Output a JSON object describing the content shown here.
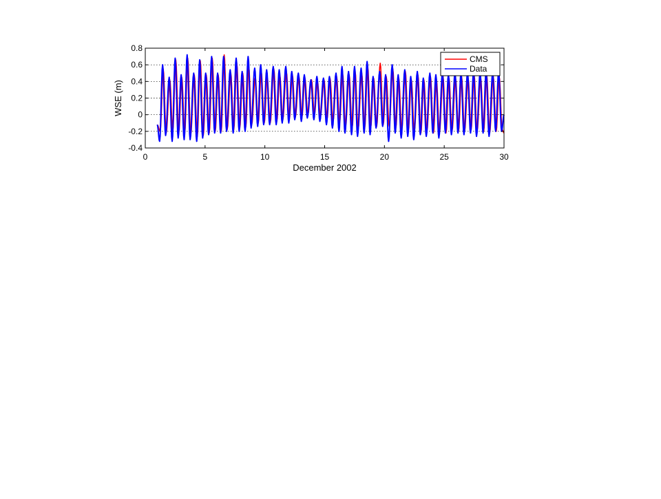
{
  "chart_data": {
    "type": "line",
    "title": "",
    "xlabel": "December 2002",
    "ylabel": "WSE (m)",
    "xlim": [
      0,
      30
    ],
    "ylim": [
      -0.4,
      0.8
    ],
    "x_ticks": [
      0,
      5,
      10,
      15,
      20,
      25,
      30
    ],
    "x_tick_labels": [
      "0",
      "5",
      "10",
      "15",
      "20",
      "25",
      "30"
    ],
    "y_ticks": [
      -0.4,
      -0.2,
      0,
      0.2,
      0.4,
      0.6,
      0.8
    ],
    "y_tick_labels": [
      "-0.4",
      "-0.2",
      "0",
      "0.2",
      "0.4",
      "0.6",
      "0.8"
    ],
    "grid": "horizontal dotted",
    "legend_position": "top-right",
    "series": [
      {
        "name": "CMS",
        "color": "#ff0000",
        "t_range": [
          1.0,
          30.0
        ],
        "peaks": [
          [
            1.0,
            -0.12
          ],
          [
            1.25,
            -0.2
          ],
          [
            1.5,
            0.55
          ],
          [
            1.75,
            -0.22
          ],
          [
            2.05,
            0.42
          ],
          [
            2.3,
            -0.2
          ],
          [
            2.55,
            0.66
          ],
          [
            2.8,
            -0.22
          ],
          [
            3.05,
            0.45
          ],
          [
            3.3,
            -0.22
          ],
          [
            3.55,
            0.68
          ],
          [
            3.8,
            -0.24
          ],
          [
            4.1,
            0.48
          ],
          [
            4.35,
            -0.26
          ],
          [
            4.6,
            0.65
          ],
          [
            4.85,
            -0.25
          ],
          [
            5.1,
            0.48
          ],
          [
            5.35,
            -0.22
          ],
          [
            5.6,
            0.68
          ],
          [
            5.85,
            -0.2
          ],
          [
            6.1,
            0.48
          ],
          [
            6.35,
            -0.2
          ],
          [
            6.6,
            0.72
          ],
          [
            6.85,
            -0.18
          ],
          [
            7.15,
            0.5
          ],
          [
            7.4,
            -0.18
          ],
          [
            7.65,
            0.62
          ],
          [
            7.9,
            -0.16
          ],
          [
            8.15,
            0.5
          ],
          [
            8.4,
            -0.15
          ],
          [
            8.65,
            0.58
          ],
          [
            8.9,
            -0.12
          ],
          [
            9.2,
            0.45
          ],
          [
            9.45,
            -0.1
          ],
          [
            9.7,
            0.52
          ],
          [
            9.95,
            -0.1
          ],
          [
            10.2,
            0.45
          ],
          [
            10.45,
            -0.1
          ],
          [
            10.75,
            0.55
          ],
          [
            11.0,
            -0.08
          ],
          [
            11.25,
            0.48
          ],
          [
            11.5,
            -0.06
          ],
          [
            11.8,
            0.52
          ],
          [
            12.05,
            -0.05
          ],
          [
            12.3,
            0.48
          ],
          [
            12.55,
            -0.03
          ],
          [
            12.85,
            0.46
          ],
          [
            13.1,
            -0.03
          ],
          [
            13.35,
            0.44
          ],
          [
            13.6,
            0.0
          ],
          [
            13.9,
            0.42
          ],
          [
            14.15,
            0.0
          ],
          [
            14.4,
            0.4
          ],
          [
            14.65,
            -0.02
          ],
          [
            14.95,
            0.42
          ],
          [
            15.2,
            -0.06
          ],
          [
            15.45,
            0.44
          ],
          [
            15.7,
            -0.08
          ],
          [
            16.0,
            0.46
          ],
          [
            16.25,
            -0.1
          ],
          [
            16.5,
            0.5
          ],
          [
            16.75,
            -0.14
          ],
          [
            17.05,
            0.48
          ],
          [
            17.3,
            -0.16
          ],
          [
            17.55,
            0.52
          ],
          [
            17.8,
            -0.18
          ],
          [
            18.1,
            0.5
          ],
          [
            18.35,
            -0.16
          ],
          [
            18.6,
            0.58
          ],
          [
            18.85,
            -0.16
          ],
          [
            19.1,
            0.44
          ],
          [
            19.35,
            -0.14
          ],
          [
            19.65,
            0.62
          ],
          [
            19.9,
            -0.12
          ],
          [
            20.15,
            0.46
          ],
          [
            20.4,
            -0.14
          ],
          [
            20.7,
            0.55
          ],
          [
            20.95,
            -0.16
          ],
          [
            21.2,
            0.44
          ],
          [
            21.45,
            -0.18
          ],
          [
            21.75,
            0.52
          ],
          [
            22.0,
            -0.2
          ],
          [
            22.25,
            0.42
          ],
          [
            22.5,
            -0.2
          ],
          [
            22.8,
            0.48
          ],
          [
            23.05,
            -0.22
          ],
          [
            23.3,
            0.42
          ],
          [
            23.55,
            -0.2
          ],
          [
            23.85,
            0.46
          ],
          [
            24.1,
            -0.22
          ],
          [
            24.35,
            0.42
          ],
          [
            24.6,
            -0.22
          ],
          [
            24.9,
            0.46
          ],
          [
            25.15,
            -0.22
          ],
          [
            25.4,
            0.44
          ],
          [
            25.65,
            -0.2
          ],
          [
            25.95,
            0.44
          ],
          [
            26.2,
            -0.2
          ],
          [
            26.45,
            0.46
          ],
          [
            26.7,
            -0.2
          ],
          [
            27.0,
            0.44
          ],
          [
            27.25,
            -0.18
          ],
          [
            27.5,
            0.48
          ],
          [
            27.75,
            -0.2
          ],
          [
            28.05,
            0.44
          ],
          [
            28.3,
            -0.2
          ],
          [
            28.55,
            0.48
          ],
          [
            28.8,
            -0.22
          ],
          [
            29.1,
            0.46
          ],
          [
            29.35,
            -0.2
          ],
          [
            29.6,
            0.46
          ],
          [
            29.85,
            -0.18
          ],
          [
            30.0,
            -0.22
          ]
        ]
      },
      {
        "name": "Data",
        "color": "#0000ff",
        "t_range": [
          1.0,
          30.0
        ],
        "peaks": [
          [
            1.0,
            -0.12
          ],
          [
            1.2,
            -0.32
          ],
          [
            1.45,
            0.6
          ],
          [
            1.7,
            -0.25
          ],
          [
            2.0,
            0.45
          ],
          [
            2.25,
            -0.32
          ],
          [
            2.5,
            0.68
          ],
          [
            2.75,
            -0.28
          ],
          [
            3.0,
            0.48
          ],
          [
            3.25,
            -0.3
          ],
          [
            3.5,
            0.72
          ],
          [
            3.75,
            -0.3
          ],
          [
            4.05,
            0.5
          ],
          [
            4.3,
            -0.32
          ],
          [
            4.55,
            0.66
          ],
          [
            4.8,
            -0.28
          ],
          [
            5.05,
            0.5
          ],
          [
            5.3,
            -0.24
          ],
          [
            5.55,
            0.7
          ],
          [
            5.8,
            -0.22
          ],
          [
            6.05,
            0.5
          ],
          [
            6.3,
            -0.22
          ],
          [
            6.55,
            0.7
          ],
          [
            6.8,
            -0.2
          ],
          [
            7.1,
            0.54
          ],
          [
            7.35,
            -0.22
          ],
          [
            7.6,
            0.68
          ],
          [
            7.85,
            -0.2
          ],
          [
            8.1,
            0.52
          ],
          [
            8.35,
            -0.2
          ],
          [
            8.6,
            0.7
          ],
          [
            8.85,
            -0.16
          ],
          [
            9.15,
            0.56
          ],
          [
            9.4,
            -0.14
          ],
          [
            9.65,
            0.6
          ],
          [
            9.9,
            -0.12
          ],
          [
            10.15,
            0.54
          ],
          [
            10.4,
            -0.12
          ],
          [
            10.7,
            0.58
          ],
          [
            10.95,
            -0.12
          ],
          [
            11.2,
            0.54
          ],
          [
            11.45,
            -0.1
          ],
          [
            11.75,
            0.58
          ],
          [
            12.0,
            -0.1
          ],
          [
            12.25,
            0.52
          ],
          [
            12.5,
            -0.06
          ],
          [
            12.8,
            0.5
          ],
          [
            13.05,
            -0.08
          ],
          [
            13.3,
            0.48
          ],
          [
            13.55,
            -0.04
          ],
          [
            13.85,
            0.42
          ],
          [
            14.1,
            -0.06
          ],
          [
            14.35,
            0.46
          ],
          [
            14.6,
            -0.08
          ],
          [
            14.9,
            0.44
          ],
          [
            15.15,
            -0.12
          ],
          [
            15.4,
            0.46
          ],
          [
            15.65,
            -0.16
          ],
          [
            15.95,
            0.5
          ],
          [
            16.2,
            -0.2
          ],
          [
            16.45,
            0.58
          ],
          [
            16.7,
            -0.22
          ],
          [
            17.0,
            0.52
          ],
          [
            17.25,
            -0.24
          ],
          [
            17.5,
            0.58
          ],
          [
            17.75,
            -0.26
          ],
          [
            18.05,
            0.56
          ],
          [
            18.3,
            -0.22
          ],
          [
            18.55,
            0.64
          ],
          [
            18.8,
            -0.24
          ],
          [
            19.05,
            0.46
          ],
          [
            19.3,
            -0.16
          ],
          [
            19.6,
            0.52
          ],
          [
            19.85,
            -0.14
          ],
          [
            20.1,
            0.48
          ],
          [
            20.35,
            -0.32
          ],
          [
            20.65,
            0.6
          ],
          [
            20.9,
            -0.22
          ],
          [
            21.15,
            0.48
          ],
          [
            21.4,
            -0.28
          ],
          [
            21.7,
            0.54
          ],
          [
            21.95,
            -0.26
          ],
          [
            22.2,
            0.46
          ],
          [
            22.45,
            -0.3
          ],
          [
            22.75,
            0.52
          ],
          [
            23.0,
            -0.24
          ],
          [
            23.25,
            0.44
          ],
          [
            23.5,
            -0.26
          ],
          [
            23.8,
            0.5
          ],
          [
            24.05,
            -0.22
          ],
          [
            24.3,
            0.48
          ],
          [
            24.55,
            -0.28
          ],
          [
            24.85,
            0.5
          ],
          [
            25.1,
            -0.22
          ],
          [
            25.35,
            0.48
          ],
          [
            25.6,
            -0.24
          ],
          [
            25.9,
            0.5
          ],
          [
            26.15,
            -0.22
          ],
          [
            26.4,
            0.5
          ],
          [
            26.65,
            -0.24
          ],
          [
            26.95,
            0.5
          ],
          [
            27.2,
            -0.22
          ],
          [
            27.45,
            0.52
          ],
          [
            27.7,
            -0.26
          ],
          [
            28.0,
            0.5
          ],
          [
            28.25,
            -0.22
          ],
          [
            28.5,
            0.52
          ],
          [
            28.75,
            -0.26
          ],
          [
            29.05,
            0.5
          ],
          [
            29.3,
            -0.2
          ],
          [
            29.55,
            0.52
          ],
          [
            29.8,
            -0.2
          ],
          [
            30.0,
            0.0
          ]
        ]
      }
    ]
  }
}
